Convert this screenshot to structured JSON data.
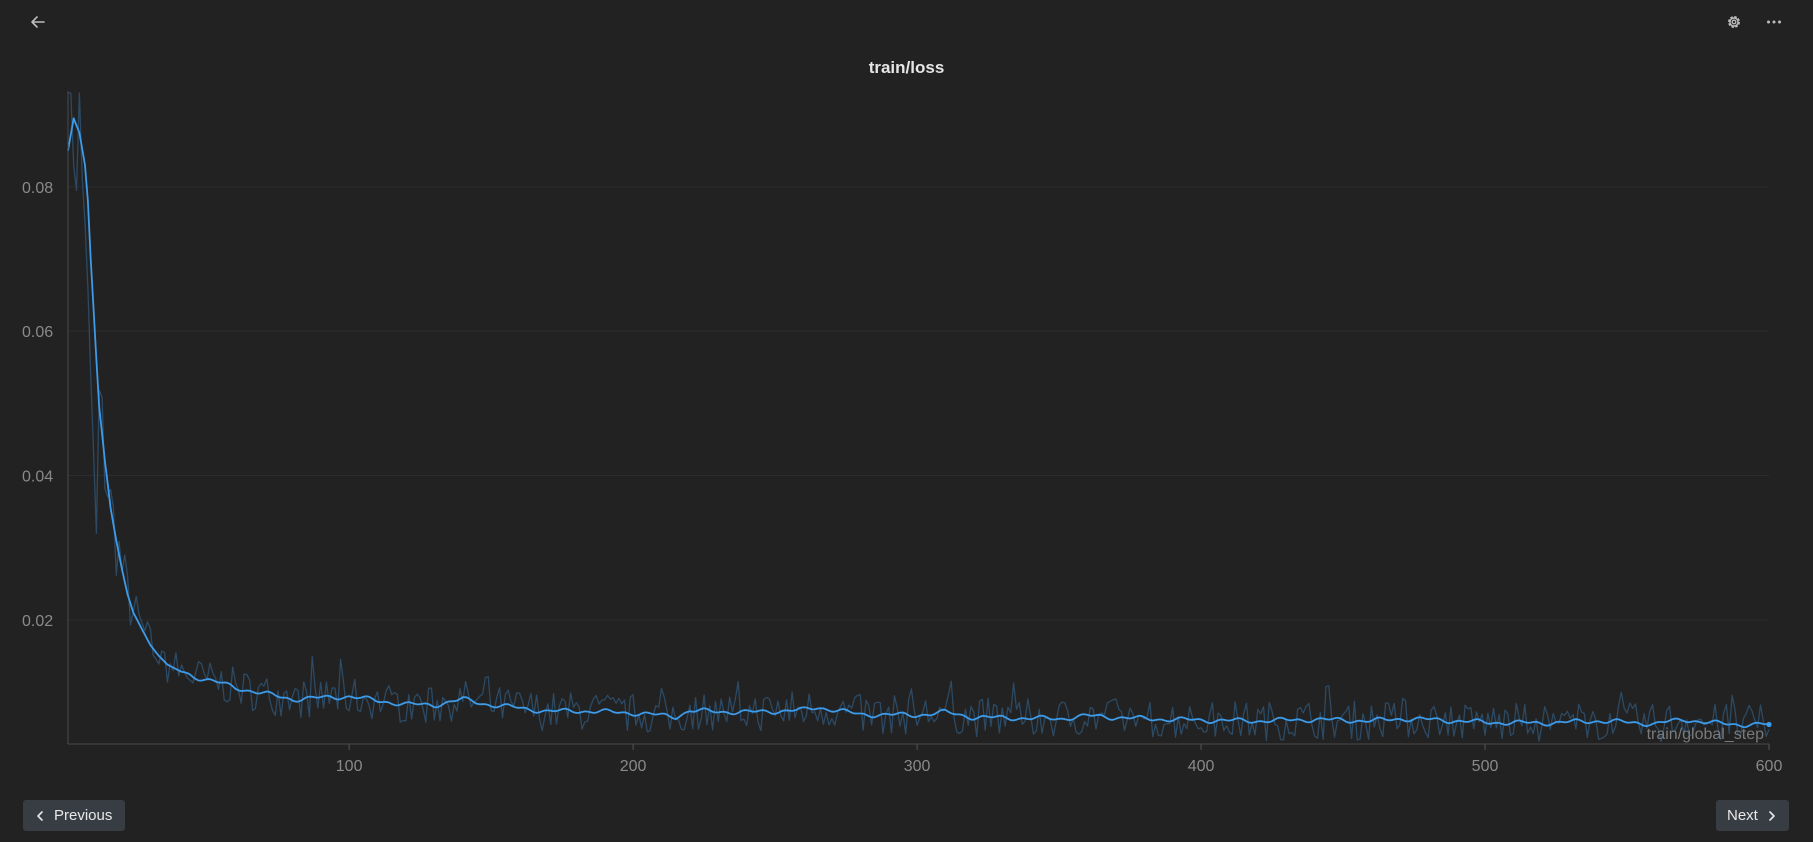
{
  "header": {
    "back_icon": "arrow-left-icon",
    "settings_icon": "gear-icon",
    "more_icon": "more-horizontal-icon"
  },
  "footer": {
    "previous_label": "Previous",
    "next_label": "Next"
  },
  "chart_data": {
    "type": "line",
    "title": "train/loss",
    "xlabel": "train/global_step",
    "ylabel": "",
    "xlim": [
      1,
      600
    ],
    "ylim": [
      0.0028,
      0.093
    ],
    "xticks": [
      100,
      200,
      300,
      400,
      500,
      600
    ],
    "yticks": [
      0.02,
      0.04,
      0.06,
      0.08
    ],
    "grid": true,
    "colors": {
      "smoothed": "#3d9be9",
      "raw": "#2c4a64"
    },
    "smoothed_knots": [
      [
        1,
        0.085
      ],
      [
        3,
        0.0895
      ],
      [
        5,
        0.0875
      ],
      [
        7,
        0.083
      ],
      [
        8,
        0.078
      ],
      [
        9,
        0.07
      ],
      [
        10,
        0.063
      ],
      [
        11,
        0.056
      ],
      [
        12,
        0.0495
      ],
      [
        14,
        0.042
      ],
      [
        16,
        0.0355
      ],
      [
        18,
        0.031
      ],
      [
        20,
        0.027
      ],
      [
        22,
        0.0235
      ],
      [
        24,
        0.021
      ],
      [
        26,
        0.0195
      ],
      [
        28,
        0.018
      ],
      [
        30,
        0.0165
      ],
      [
        33,
        0.015
      ],
      [
        36,
        0.0138
      ],
      [
        40,
        0.013
      ],
      [
        45,
        0.0122
      ],
      [
        50,
        0.0117
      ],
      [
        55,
        0.0112
      ],
      [
        60,
        0.0106
      ],
      [
        70,
        0.0098
      ],
      [
        80,
        0.009
      ],
      [
        90,
        0.0092
      ],
      [
        100,
        0.0094
      ],
      [
        110,
        0.0088
      ],
      [
        120,
        0.0083
      ],
      [
        130,
        0.0082
      ],
      [
        140,
        0.009
      ],
      [
        150,
        0.0082
      ],
      [
        160,
        0.0078
      ],
      [
        170,
        0.0073
      ],
      [
        180,
        0.0074
      ],
      [
        200,
        0.0071
      ],
      [
        215,
        0.0066
      ],
      [
        220,
        0.0074
      ],
      [
        240,
        0.0072
      ],
      [
        260,
        0.0075
      ],
      [
        265,
        0.0079
      ],
      [
        280,
        0.0069
      ],
      [
        300,
        0.0068
      ],
      [
        310,
        0.0072
      ],
      [
        320,
        0.0065
      ],
      [
        350,
        0.0063
      ],
      [
        360,
        0.0067
      ],
      [
        380,
        0.0063
      ],
      [
        400,
        0.0061
      ],
      [
        420,
        0.006
      ],
      [
        440,
        0.0062
      ],
      [
        460,
        0.006
      ],
      [
        470,
        0.0063
      ],
      [
        480,
        0.0062
      ],
      [
        500,
        0.0058
      ],
      [
        520,
        0.0057
      ],
      [
        540,
        0.006
      ],
      [
        560,
        0.0056
      ],
      [
        570,
        0.0062
      ],
      [
        580,
        0.0057
      ],
      [
        590,
        0.0055
      ],
      [
        600,
        0.0055
      ]
    ]
  }
}
